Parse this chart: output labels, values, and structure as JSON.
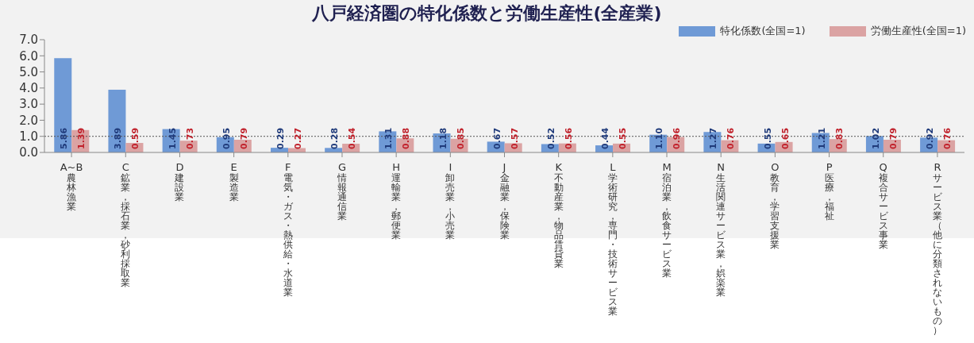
{
  "chart_data": {
    "type": "bar",
    "title": "八戸経済圏の特化係数と労働生産性(全産業)",
    "categories": [
      "A~B 農林漁業",
      "C 鉱業，採石業，砂利採取業",
      "D 建設業",
      "E 製造業",
      "F 電気・ガス・熱供給・水道業",
      "G 情報通信業",
      "H 運輸業，郵便業",
      "I 卸売業，小売業",
      "J 金融業，保険業",
      "K 不動産業，物品賃貸業",
      "L 学術研究，専門・技術サービス業",
      "M 宿泊業，飲食サービス業",
      "N 生活関連サービス業，娯楽業",
      "O 教育，学習支援業",
      "P 医療，福祉",
      "Q 複合サービス事業",
      "R サービス業（他に分類されないもの）"
    ],
    "series": [
      {
        "name": "特化係数(全国=1)",
        "color": "#6f9ad6",
        "values": [
          5.86,
          3.89,
          1.45,
          0.95,
          0.29,
          0.28,
          1.31,
          1.18,
          0.67,
          0.52,
          0.44,
          1.1,
          1.27,
          0.55,
          1.21,
          1.02,
          0.92
        ],
        "value_labels": [
          "5.86",
          "3.89",
          "1.45",
          "0.95",
          "0.29",
          "0.28",
          "1.31",
          "1.18",
          "0.67",
          "0.52",
          "0.44",
          "1.10",
          "1.27",
          "0.55",
          "1.21",
          "1.02",
          "0.92"
        ]
      },
      {
        "name": "労働生産性(全国=1)",
        "color": "#dba3a3",
        "values": [
          1.39,
          0.59,
          0.73,
          0.79,
          0.27,
          0.54,
          0.88,
          0.85,
          0.57,
          0.56,
          0.55,
          0.96,
          0.76,
          0.65,
          0.83,
          0.79,
          0.76
        ],
        "value_labels": [
          "1.39",
          "0.59",
          "0.73",
          "0.79",
          "0.27",
          "0.54",
          "0.88",
          "0.85",
          "0.57",
          "0.56",
          "0.55",
          "0.96",
          "0.76",
          "0.65",
          "0.83",
          "0.79",
          "0.76"
        ]
      }
    ],
    "ylim": [
      0,
      7
    ],
    "yticks": [
      {
        "value": 0,
        "label": "0.0"
      },
      {
        "value": 1,
        "label": "1.0"
      },
      {
        "value": 2,
        "label": "2.0"
      },
      {
        "value": 3,
        "label": "3.0"
      },
      {
        "value": 4,
        "label": "4.0"
      },
      {
        "value": 5,
        "label": "5.0"
      },
      {
        "value": 6,
        "label": "6.0"
      },
      {
        "value": 7,
        "label": "7.0"
      }
    ],
    "ref_lines": [
      {
        "axis": "y",
        "value": 1,
        "color": "#555555",
        "line_style": "dotted"
      }
    ],
    "grid": false,
    "legend": "top right"
  }
}
